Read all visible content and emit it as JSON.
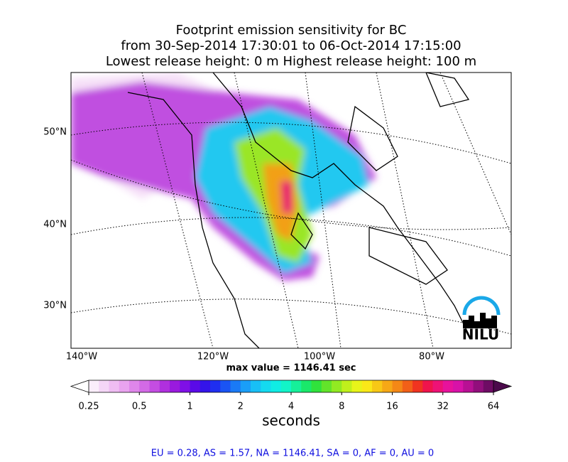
{
  "map": {
    "title_lines": [
      "Footprint emission sensitivity for BC",
      "from 30-Sep-2014 17:30:01 to 06-Oct-2014 17:15:00",
      "Lowest release height: 0 m      Highest release height: 100 m"
    ],
    "lat_labels": [
      "50°N",
      "40°N",
      "30°N"
    ],
    "lon_labels": [
      "140°W",
      "120°W",
      "100°W",
      "80°W"
    ],
    "max_value_text": "max value = 1146.41 sec",
    "logo": "NILU",
    "colorbar": {
      "label": "seconds",
      "log": true,
      "lim": [
        0.25,
        64
      ],
      "ticks": [
        0.25,
        0.5,
        1,
        2,
        4,
        8,
        16,
        32,
        64
      ],
      "under_color": "#ffffff",
      "over_color": "#4b0a4b",
      "colors": [
        "#fbeefb",
        "#f5d6f7",
        "#efbdf3",
        "#e9a3ef",
        "#df86ea",
        "#d36ae6",
        "#c44de2",
        "#b030de",
        "#9a1ade",
        "#7f10e6",
        "#5a0ae8",
        "#3414ea",
        "#1f2ef0",
        "#1a54f4",
        "#1a7af6",
        "#1a9ef8",
        "#18bff6",
        "#14daf0",
        "#10ece4",
        "#12f4c8",
        "#16f09a",
        "#1ae86a",
        "#30e23c",
        "#62e42a",
        "#92ea22",
        "#c0f01c",
        "#e8f41a",
        "#fae818",
        "#f8c816",
        "#f6a816",
        "#f48816",
        "#f26018",
        "#f03420",
        "#f0144c",
        "#ee1276",
        "#e8129c",
        "#d812a8",
        "#b81094",
        "#920e7c",
        "#6e0c64"
      ]
    },
    "footer": "EU = 0.28,  AS = 1.57,  NA = 1146.41,  SA = 0,  AF = 0,  AU = 0"
  }
}
